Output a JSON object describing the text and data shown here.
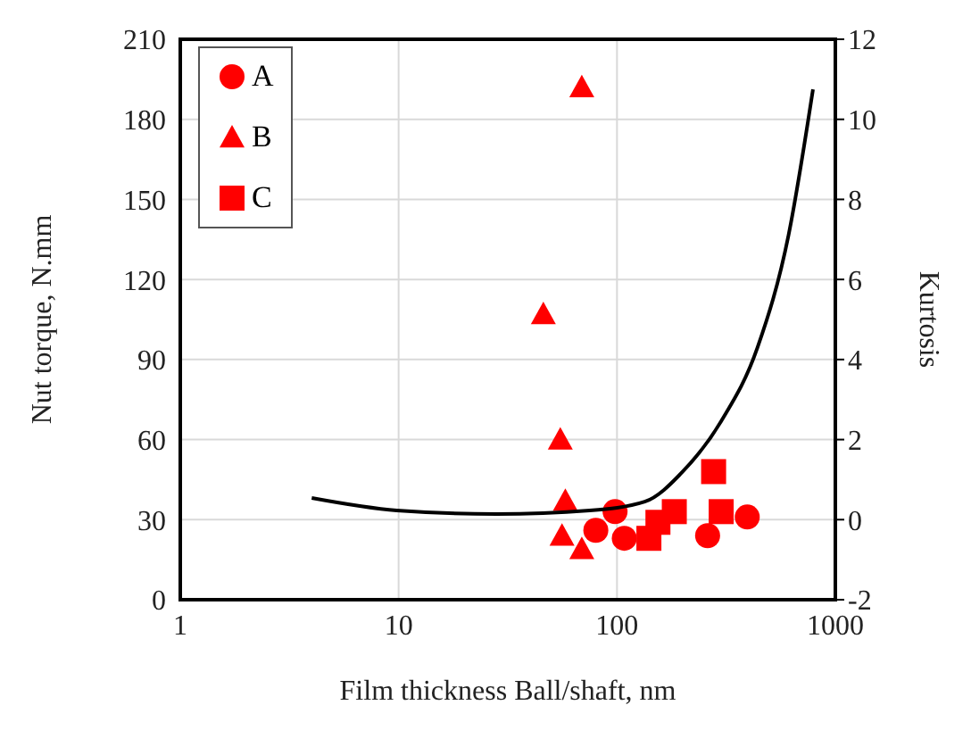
{
  "chart_data": {
    "type": "scatter",
    "xlabel": "Film thickness Ball/shaft, nm",
    "ylabel": "Nut torque, N.mm",
    "y2label": "Kurtosis",
    "log": "x",
    "xlim": [
      1,
      1000
    ],
    "xticks": [
      1,
      10,
      100,
      1000
    ],
    "ylim": [
      0,
      210
    ],
    "yticks": [
      0,
      30,
      60,
      90,
      120,
      150,
      180,
      210
    ],
    "y2lim": [
      -2,
      12
    ],
    "y2ticks": [
      -2,
      0,
      2,
      4,
      6,
      8,
      10,
      12
    ],
    "grid": true,
    "legend": "top left",
    "series": [
      {
        "name": "A",
        "color": "#ff0000",
        "marker": "circle",
        "x": [
          98,
          108,
          80,
          260,
          395
        ],
        "values": [
          33,
          23,
          26,
          24,
          31
        ]
      },
      {
        "name": "B",
        "color": "#ff0000",
        "marker": "triangle",
        "x": [
          69,
          46,
          55,
          58,
          56,
          69
        ],
        "values": [
          192,
          107,
          60,
          37,
          24,
          19
        ]
      },
      {
        "name": "C",
        "color": "#ff0000",
        "marker": "square",
        "x": [
          277,
          300,
          183,
          154,
          140
        ],
        "values": [
          48,
          33,
          33,
          29,
          23
        ]
      },
      {
        "type": "line",
        "axis": "y2",
        "color": "#000000",
        "marker": "none",
        "x": [
          4,
          9.8,
          28,
          75,
          134,
          200,
          300,
          440,
          610,
          790
        ],
        "values": [
          0.54,
          0.23,
          0.14,
          0.23,
          0.45,
          1.2,
          2.46,
          4.3,
          7.1,
          10.75
        ]
      }
    ]
  }
}
